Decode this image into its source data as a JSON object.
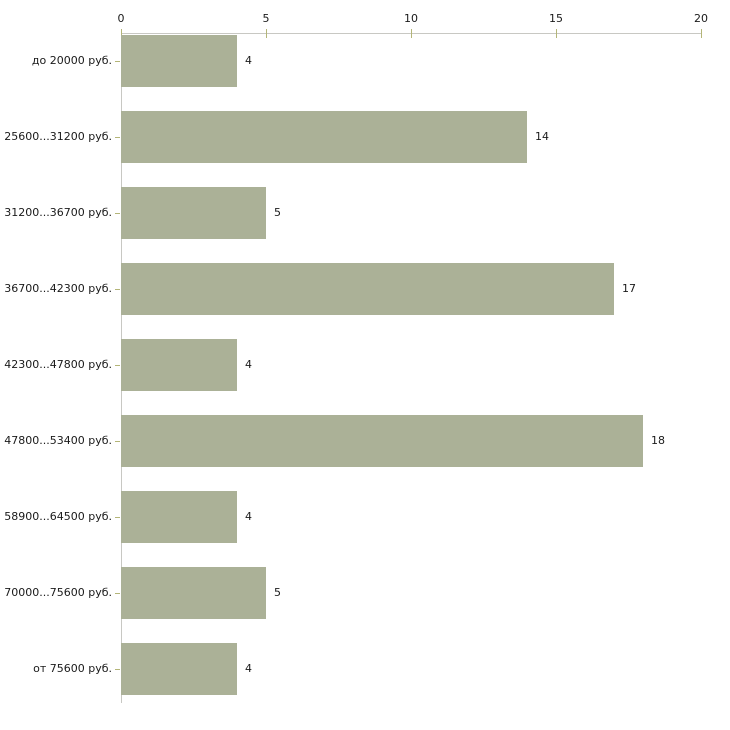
{
  "chart_data": {
    "type": "bar",
    "orientation": "horizontal",
    "title": "",
    "xlabel": "",
    "ylabel": "",
    "categories": [
      "до 20000 руб.",
      "25600...31200 руб.",
      "31200...36700 руб.",
      "36700...42300 руб.",
      "42300...47800 руб.",
      "47800...53400 руб.",
      "58900...64500 руб.",
      "70000...75600 руб.",
      "от 75600 руб."
    ],
    "values": [
      4,
      14,
      5,
      17,
      4,
      18,
      4,
      5,
      4
    ],
    "xlim": [
      0,
      20
    ],
    "x_ticks": [
      "0",
      "5",
      "10",
      "15",
      "20"
    ],
    "axis_position": "top",
    "grid": false,
    "legend": null,
    "colors": {
      "bar_fill": "#ABB197",
      "axis_line": "#C8C8C3",
      "tick_mark": "#B4B578",
      "text": "#1A1A1A"
    }
  }
}
